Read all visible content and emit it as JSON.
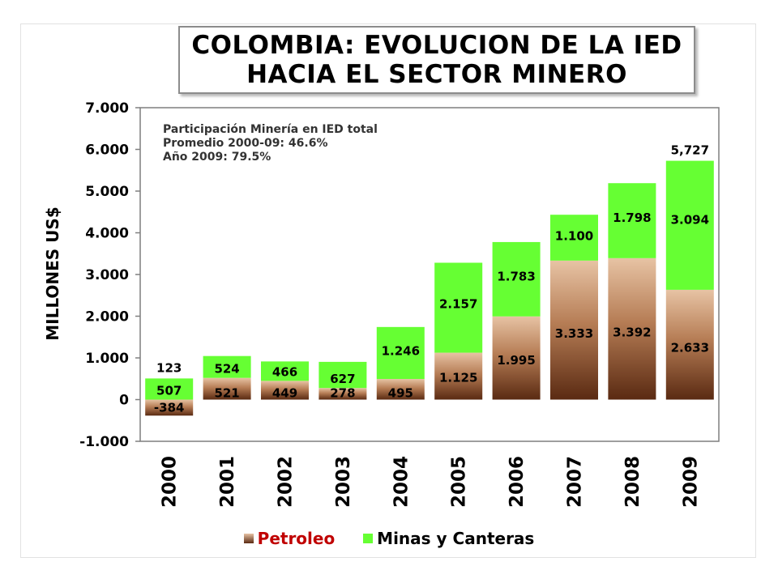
{
  "title_lines": [
    "COLOMBIA: EVOLUCION DE LA IED",
    "HACIA EL SECTOR MINERO"
  ],
  "annotation_lines": [
    "Participación Minería en IED total",
    "Promedio 2000-09: 46.6%",
    "Año 2009: 79.5%"
  ],
  "legend": {
    "petroleo": "Petroleo",
    "minas": "Minas y Canteras"
  },
  "colors": {
    "petroleo": "#8b4a2b",
    "minas": "#66ff33",
    "legend_text_petroleo": "#c00000",
    "legend_text_minas": "#000000"
  },
  "chart_data": {
    "type": "bar",
    "stacked": true,
    "categories": [
      "2000",
      "2001",
      "2002",
      "2003",
      "2004",
      "2005",
      "2006",
      "2007",
      "2008",
      "2009"
    ],
    "series": [
      {
        "name": "Petroleo",
        "values": [
          -384,
          521,
          449,
          278,
          495,
          1125,
          1995,
          3333,
          3392,
          2633
        ],
        "labels": [
          "-384",
          "521",
          "449",
          "278",
          "495",
          "1.125",
          "1.995",
          "3.333",
          "3.392",
          "2.633"
        ]
      },
      {
        "name": "Minas y Canteras",
        "values": [
          507,
          524,
          466,
          627,
          1246,
          2157,
          1783,
          1100,
          1798,
          3094
        ],
        "labels": [
          "507",
          "524",
          "466",
          "627",
          "1.246",
          "2.157",
          "1.783",
          "1.100",
          "1.798",
          "3.094"
        ]
      }
    ],
    "top_labels": [
      {
        "category": "2000",
        "text": "123"
      },
      {
        "category": "2009",
        "text": "5,727"
      }
    ],
    "ylabel": "MILLONES US$",
    "ylim": [
      -1000,
      7000
    ],
    "yticks": [
      7000,
      6000,
      5000,
      4000,
      3000,
      2000,
      1000,
      0,
      -1000
    ],
    "ytick_labels": [
      "7.000",
      "6.000",
      "5.000",
      "4.000",
      "3.000",
      "2.000",
      "1.000",
      "0",
      "-1.000"
    ],
    "grid": false,
    "legend_position": "bottom"
  }
}
